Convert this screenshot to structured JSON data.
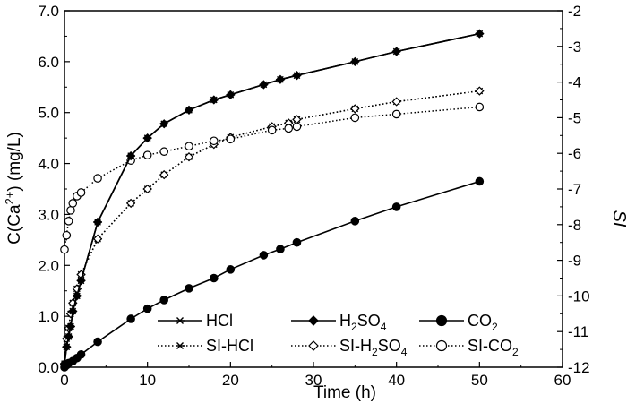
{
  "chart_data": {
    "type": "line",
    "title": "",
    "xlabel": "Time (h)",
    "ylabel_parts": {
      "pre": "C(Ca",
      "sup": "2+",
      "post": ") (mg/L)"
    },
    "ylabel2": "SI",
    "xlim": [
      0,
      60
    ],
    "ylim": [
      0,
      7
    ],
    "y2lim": [
      -12,
      -2
    ],
    "xticks": [
      "0",
      "10",
      "20",
      "30",
      "40",
      "50",
      "60"
    ],
    "yticks": [
      "0.0",
      "1.0",
      "2.0",
      "3.0",
      "4.0",
      "5.0",
      "6.0",
      "7.0"
    ],
    "y2ticks": [
      "-12",
      "-11",
      "-10",
      "-9",
      "-8",
      "-7",
      "-6",
      "-5",
      "-4",
      "-3",
      "-2"
    ],
    "grid": false,
    "legend_position": "bottom-right",
    "series": [
      {
        "name": "HCl",
        "axis": "left",
        "line": "solid",
        "marker": "asterisk",
        "x": [
          0,
          0.25,
          0.5,
          0.75,
          1,
          1.5,
          2,
          4,
          8,
          10,
          12,
          15,
          18,
          20,
          24,
          26,
          28,
          35,
          40,
          50
        ],
        "y": [
          0.05,
          0.4,
          0.6,
          0.8,
          1.1,
          1.4,
          1.7,
          2.85,
          4.15,
          4.5,
          4.78,
          5.05,
          5.25,
          5.35,
          5.55,
          5.65,
          5.73,
          6.0,
          6.2,
          6.55
        ]
      },
      {
        "name": "H2SO4",
        "legend_parts": {
          "pre": "H",
          "sub1": "2",
          "mid": "SO",
          "sub2": "4"
        },
        "axis": "left",
        "line": "solid",
        "marker": "diamond-filled",
        "x": [
          0,
          0.25,
          0.5,
          0.75,
          1,
          1.5,
          2,
          4,
          8,
          10,
          12,
          15,
          18,
          20,
          24,
          26,
          28,
          35,
          40,
          50
        ],
        "y": [
          0.05,
          0.4,
          0.6,
          0.8,
          1.1,
          1.4,
          1.7,
          2.85,
          4.15,
          4.5,
          4.78,
          5.05,
          5.25,
          5.35,
          5.55,
          5.65,
          5.73,
          6.0,
          6.2,
          6.55
        ]
      },
      {
        "name": "CO2",
        "legend_parts": {
          "pre": "CO",
          "sub1": "2"
        },
        "axis": "left",
        "line": "solid",
        "marker": "circle-filled",
        "x": [
          0,
          0.25,
          0.5,
          1,
          1.5,
          2,
          4,
          8,
          10,
          12,
          15,
          18,
          20,
          24,
          26,
          28,
          35,
          40,
          50
        ],
        "y": [
          0.0,
          0.04,
          0.08,
          0.12,
          0.18,
          0.25,
          0.5,
          0.95,
          1.15,
          1.32,
          1.55,
          1.75,
          1.92,
          2.2,
          2.32,
          2.45,
          2.87,
          3.15,
          3.65
        ]
      },
      {
        "name": "SI-HCl",
        "axis": "right",
        "line": "dotted",
        "marker": "asterisk",
        "x": [
          0,
          0.25,
          0.5,
          0.75,
          1,
          1.5,
          2,
          4,
          8,
          10,
          12,
          15,
          18,
          20,
          25,
          27,
          28,
          35,
          40,
          50
        ],
        "y": [
          -11.9,
          -11.2,
          -10.9,
          -10.5,
          -10.2,
          -9.8,
          -9.4,
          -8.4,
          -7.4,
          -7.0,
          -6.6,
          -6.1,
          -5.75,
          -5.55,
          -5.25,
          -5.15,
          -5.05,
          -4.75,
          -4.55,
          -4.25
        ]
      },
      {
        "name": "SI-H2SO4",
        "legend_parts": {
          "pre": "SI-H",
          "sub1": "2",
          "mid": "SO",
          "sub2": "4"
        },
        "axis": "right",
        "line": "dotted",
        "marker": "diamond-open",
        "x": [
          0,
          0.25,
          0.5,
          0.75,
          1,
          1.5,
          2,
          4,
          8,
          10,
          12,
          15,
          18,
          20,
          25,
          27,
          28,
          35,
          40,
          50
        ],
        "y": [
          -11.9,
          -11.2,
          -10.9,
          -10.5,
          -10.2,
          -9.8,
          -9.4,
          -8.4,
          -7.4,
          -7.0,
          -6.6,
          -6.1,
          -5.75,
          -5.55,
          -5.25,
          -5.15,
          -5.05,
          -4.75,
          -4.55,
          -4.25
        ]
      },
      {
        "name": "SI-CO2",
        "legend_parts": {
          "pre": "SI-CO",
          "sub1": "2"
        },
        "axis": "right",
        "line": "dotted",
        "marker": "circle-open",
        "x": [
          0,
          0.25,
          0.5,
          0.75,
          1,
          1.5,
          2,
          4,
          8,
          10,
          12,
          15,
          18,
          20,
          25,
          27,
          28,
          35,
          40,
          50
        ],
        "y": [
          -8.7,
          -8.3,
          -7.9,
          -7.6,
          -7.4,
          -7.2,
          -7.1,
          -6.7,
          -6.2,
          -6.05,
          -5.95,
          -5.8,
          -5.65,
          -5.6,
          -5.35,
          -5.3,
          -5.25,
          -5.0,
          -4.9,
          -4.7
        ]
      }
    ]
  }
}
